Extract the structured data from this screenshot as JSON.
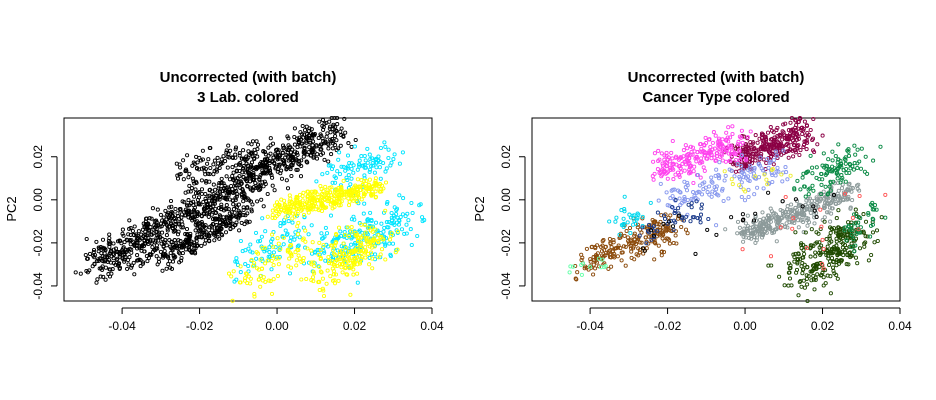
{
  "chart_data": [
    {
      "type": "scatter",
      "title": "Uncorrected (with batch)",
      "subtitle": "3 Lab. colored",
      "xlabel": "",
      "ylabel": "PC2",
      "xlim": [
        -0.055,
        0.04
      ],
      "ylim": [
        -0.047,
        0.038
      ],
      "xticks": [
        "-0.04",
        "-0.02",
        "0.00",
        "0.02",
        "0.04"
      ],
      "xtick_values": [
        -0.04,
        -0.02,
        0.0,
        0.02,
        0.04
      ],
      "yticks": [
        "-0.04",
        "-0.02",
        "0.00",
        "0.02"
      ],
      "ytick_values": [
        -0.04,
        -0.02,
        0.0,
        0.02
      ],
      "marker": "open-circle",
      "series": [
        {
          "color": "#000000",
          "clusters": [
            {
              "x0": -0.047,
              "y0": -0.031,
              "x1": 0.016,
              "y1": 0.033,
              "spread": 0.0045,
              "n": 900
            },
            {
              "x0": -0.03,
              "y0": -0.028,
              "x1": -0.008,
              "y1": -0.004,
              "spread": 0.003,
              "n": 250
            },
            {
              "x0": -0.026,
              "y0": 0.012,
              "x1": 0.001,
              "y1": 0.022,
              "spread": 0.004,
              "n": 150
            }
          ]
        },
        {
          "color": "#00e5ff",
          "clusters": [
            {
              "x0": 0.012,
              "y0": -0.025,
              "x1": 0.034,
              "y1": -0.008,
              "spread": 0.0055,
              "n": 220
            },
            {
              "x0": 0.013,
              "y0": 0.01,
              "x1": 0.03,
              "y1": 0.02,
              "spread": 0.004,
              "n": 90
            },
            {
              "x0": -0.01,
              "y0": -0.03,
              "x1": 0.006,
              "y1": -0.014,
              "spread": 0.004,
              "n": 80
            }
          ]
        },
        {
          "color": "#ffff00",
          "clusters": [
            {
              "x0": 0.0,
              "y0": -0.005,
              "x1": 0.026,
              "y1": 0.006,
              "spread": 0.0025,
              "n": 320
            },
            {
              "x0": 0.012,
              "y0": -0.035,
              "x1": 0.026,
              "y1": -0.016,
              "spread": 0.005,
              "n": 200
            },
            {
              "x0": -0.01,
              "y0": -0.042,
              "x1": 0.008,
              "y1": -0.018,
              "spread": 0.005,
              "n": 90
            }
          ]
        }
      ]
    },
    {
      "type": "scatter",
      "title": "Uncorrected (with batch)",
      "subtitle": "Cancer Type colored",
      "xlabel": "",
      "ylabel": "PC2",
      "xlim": [
        -0.055,
        0.04
      ],
      "ylim": [
        -0.047,
        0.038
      ],
      "xticks": [
        "-0.04",
        "-0.02",
        "0.00",
        "0.02",
        "0.04"
      ],
      "xtick_values": [
        -0.04,
        -0.02,
        0.0,
        0.02,
        0.04
      ],
      "yticks": [
        "-0.04",
        "-0.02",
        "0.00",
        "0.02"
      ],
      "ytick_values": [
        -0.04,
        -0.02,
        0.0,
        0.02
      ],
      "marker": "open-circle",
      "series": [
        {
          "color": "#8b0045",
          "clusters": [
            {
              "x0": -0.002,
              "y0": 0.018,
              "x1": 0.016,
              "y1": 0.032,
              "spread": 0.004,
              "n": 300
            }
          ]
        },
        {
          "color": "#ff44ee",
          "clusters": [
            {
              "x0": -0.022,
              "y0": 0.014,
              "x1": -0.002,
              "y1": 0.026,
              "spread": 0.0035,
              "n": 220
            }
          ]
        },
        {
          "color": "#8899ee",
          "clusters": [
            {
              "x0": -0.02,
              "y0": 0.0,
              "x1": 0.01,
              "y1": 0.016,
              "spread": 0.004,
              "n": 140
            }
          ]
        },
        {
          "color": "#8c9a9a",
          "clusters": [
            {
              "x0": 0.0,
              "y0": -0.016,
              "x1": 0.027,
              "y1": 0.004,
              "spread": 0.0028,
              "n": 340
            }
          ]
        },
        {
          "color": "#1f4a00",
          "clusters": [
            {
              "x0": 0.012,
              "y0": -0.036,
              "x1": 0.03,
              "y1": -0.014,
              "spread": 0.0055,
              "n": 280
            }
          ]
        },
        {
          "color": "#0a8a45",
          "clusters": [
            {
              "x0": 0.016,
              "y0": 0.008,
              "x1": 0.03,
              "y1": 0.02,
              "spread": 0.004,
              "n": 110
            },
            {
              "x0": 0.026,
              "y0": -0.02,
              "x1": 0.034,
              "y1": -0.004,
              "spread": 0.003,
              "n": 40
            }
          ]
        },
        {
          "color": "#8b4a0b",
          "clusters": [
            {
              "x0": -0.042,
              "y0": -0.03,
              "x1": -0.018,
              "y1": -0.012,
              "spread": 0.004,
              "n": 220
            }
          ]
        },
        {
          "color": "#00d8ee",
          "clusters": [
            {
              "x0": -0.034,
              "y0": -0.012,
              "x1": -0.026,
              "y1": -0.006,
              "spread": 0.003,
              "n": 30
            }
          ]
        },
        {
          "color": "#1a3a8a",
          "clusters": [
            {
              "x0": -0.026,
              "y0": -0.016,
              "x1": -0.012,
              "y1": -0.004,
              "spread": 0.003,
              "n": 45
            }
          ]
        },
        {
          "color": "#ff5555",
          "clusters": [
            {
              "x0": 0.006,
              "y0": -0.032,
              "x1": 0.026,
              "y1": -0.002,
              "spread": 0.008,
              "n": 18
            }
          ]
        },
        {
          "color": "#66ffaa",
          "clusters": [
            {
              "x0": -0.046,
              "y0": -0.034,
              "x1": -0.036,
              "y1": -0.028,
              "spread": 0.0025,
              "n": 12
            }
          ]
        },
        {
          "color": "#eeee33",
          "clusters": [
            {
              "x0": -0.004,
              "y0": 0.004,
              "x1": 0.008,
              "y1": 0.014,
              "spread": 0.004,
              "n": 14
            }
          ]
        },
        {
          "color": "#000000",
          "clusters": [
            {
              "x0": -0.03,
              "y0": -0.02,
              "x1": 0.02,
              "y1": 0.0,
              "spread": 0.006,
              "n": 25
            }
          ]
        }
      ]
    }
  ]
}
